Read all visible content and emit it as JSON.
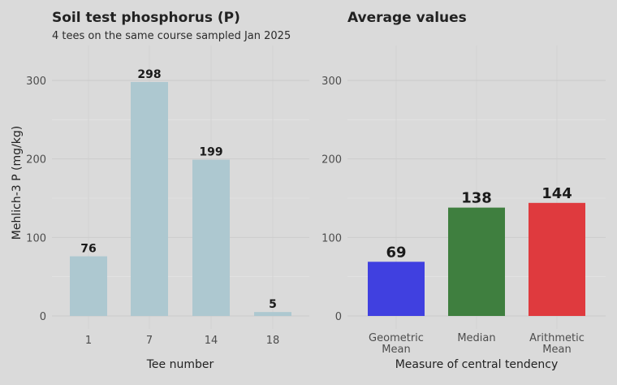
{
  "chart_data": [
    {
      "type": "bar",
      "title": "Soil test phosphorus (P)",
      "subtitle": "4 tees on the same course sampled Jan 2025",
      "xlabel": "Tee number",
      "ylabel": "Mehlich-3 P (mg/kg)",
      "categories": [
        "1",
        "7",
        "14",
        "18"
      ],
      "values": [
        76,
        298,
        199,
        5
      ],
      "data_labels": [
        "76",
        "298",
        "199",
        "5"
      ],
      "ylim": [
        0,
        340
      ],
      "yticks": [
        0,
        100,
        200,
        300
      ],
      "grid": true,
      "bar_color": "#adc8d0"
    },
    {
      "type": "bar",
      "title": "Average values",
      "xlabel": "Measure of central tendency",
      "categories": [
        "Geometric\nMean",
        "Median",
        "Arithmetic\nMean"
      ],
      "values": [
        69,
        138,
        144
      ],
      "data_labels": [
        "69",
        "138",
        "144"
      ],
      "colors": [
        "#4040e0",
        "#3f7f3f",
        "#df3a3e"
      ],
      "ylim": [
        0,
        340
      ],
      "yticks": [
        0,
        100,
        200,
        300
      ],
      "grid": true
    }
  ]
}
